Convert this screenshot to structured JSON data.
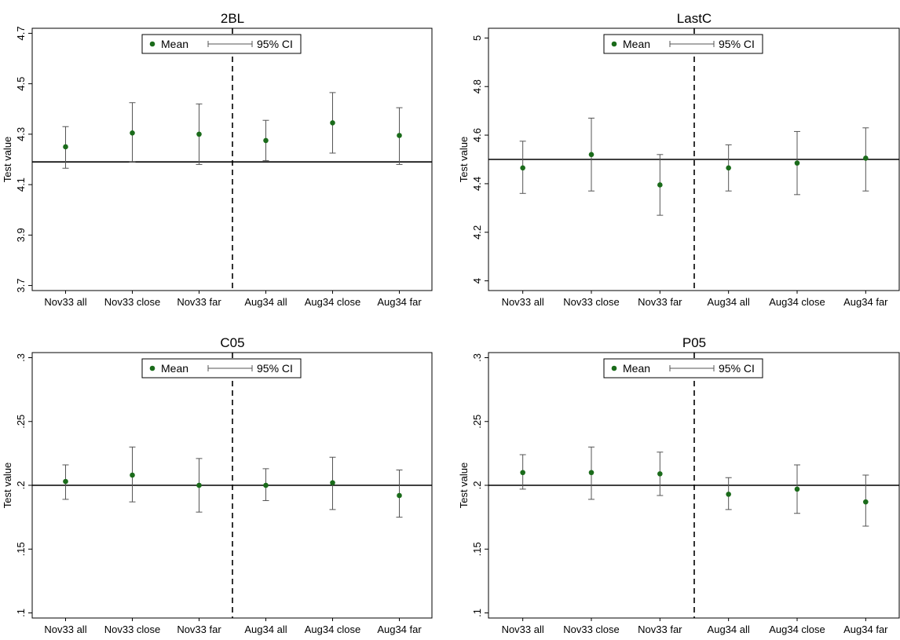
{
  "chart_data": [
    {
      "type": "scatter",
      "title": "2BL",
      "ylabel": "Test value",
      "categories": [
        "Nov33 all",
        "Nov33 close",
        "Nov33 far",
        "Aug34 all",
        "Aug34 close",
        "Aug34 far"
      ],
      "ylim": [
        3.68,
        4.72
      ],
      "yticks": [
        "3.7",
        "3.9",
        "4.1",
        "4.3",
        "4.5",
        "4.7"
      ],
      "yticks_values": [
        3.7,
        3.9,
        4.1,
        4.3,
        4.5,
        4.7
      ],
      "series": [
        {
          "name": "Mean",
          "values": [
            4.25,
            4.305,
            4.3,
            4.275,
            4.345,
            4.295
          ]
        },
        {
          "name": "95% CI",
          "lower": [
            4.165,
            4.19,
            4.18,
            4.195,
            4.225,
            4.18
          ],
          "upper": [
            4.33,
            4.425,
            4.42,
            4.355,
            4.465,
            4.405
          ]
        }
      ],
      "reference_y": 4.19,
      "divider_after": 3,
      "legend": {
        "mean_label": "Mean",
        "ci_label": "95% CI",
        "position": "top"
      }
    },
    {
      "type": "scatter",
      "title": "LastC",
      "ylabel": "Test value",
      "categories": [
        "Nov33 all",
        "Nov33 close",
        "Nov33 far",
        "Aug34 all",
        "Aug34 close",
        "Aug34 far"
      ],
      "ylim": [
        3.96,
        5.04
      ],
      "yticks": [
        "4",
        "4.2",
        "4.4",
        "4.6",
        "4.8",
        "5"
      ],
      "yticks_values": [
        4,
        4.2,
        4.4,
        4.6,
        4.8,
        5
      ],
      "series": [
        {
          "name": "Mean",
          "values": [
            4.465,
            4.52,
            4.395,
            4.465,
            4.485,
            4.505
          ]
        },
        {
          "name": "95% CI",
          "lower": [
            4.36,
            4.37,
            4.27,
            4.37,
            4.355,
            4.37
          ],
          "upper": [
            4.575,
            4.67,
            4.52,
            4.56,
            4.615,
            4.63
          ]
        }
      ],
      "reference_y": 4.5,
      "divider_after": 3,
      "legend": {
        "mean_label": "Mean",
        "ci_label": "95% CI",
        "position": "top"
      }
    },
    {
      "type": "scatter",
      "title": "C05",
      "ylabel": "Test value",
      "categories": [
        "Nov33 all",
        "Nov33 close",
        "Nov33 far",
        "Aug34 all",
        "Aug34 close",
        "Aug34 far"
      ],
      "ylim": [
        0.096,
        0.304
      ],
      "yticks": [
        ".1",
        ".15",
        ".2",
        ".25",
        ".3"
      ],
      "yticks_values": [
        0.1,
        0.15,
        0.2,
        0.25,
        0.3
      ],
      "series": [
        {
          "name": "Mean",
          "values": [
            0.203,
            0.208,
            0.2,
            0.2,
            0.202,
            0.192
          ]
        },
        {
          "name": "95% CI",
          "lower": [
            0.189,
            0.187,
            0.179,
            0.188,
            0.181,
            0.175
          ],
          "upper": [
            0.216,
            0.23,
            0.221,
            0.213,
            0.222,
            0.212
          ]
        }
      ],
      "reference_y": 0.2,
      "divider_after": 3,
      "legend": {
        "mean_label": "Mean",
        "ci_label": "95% CI",
        "position": "top"
      }
    },
    {
      "type": "scatter",
      "title": "P05",
      "ylabel": "Test value",
      "categories": [
        "Nov33 all",
        "Nov33 close",
        "Nov33 far",
        "Aug34 all",
        "Aug34 close",
        "Aug34 far"
      ],
      "ylim": [
        0.096,
        0.304
      ],
      "yticks": [
        ".1",
        ".15",
        ".2",
        ".25",
        ".3"
      ],
      "yticks_values": [
        0.1,
        0.15,
        0.2,
        0.25,
        0.3
      ],
      "series": [
        {
          "name": "Mean",
          "values": [
            0.21,
            0.21,
            0.209,
            0.193,
            0.197,
            0.187
          ]
        },
        {
          "name": "95% CI",
          "lower": [
            0.197,
            0.189,
            0.192,
            0.181,
            0.178,
            0.168
          ],
          "upper": [
            0.224,
            0.23,
            0.226,
            0.206,
            0.216,
            0.208
          ]
        }
      ],
      "reference_y": 0.2,
      "divider_after": 3,
      "legend": {
        "mean_label": "Mean",
        "ci_label": "95% CI",
        "position": "top"
      }
    }
  ],
  "colors": {
    "marker": "#1a6b1a",
    "ci": "#555555",
    "line": "#000000",
    "axis": "#000000",
    "text": "#000000"
  }
}
